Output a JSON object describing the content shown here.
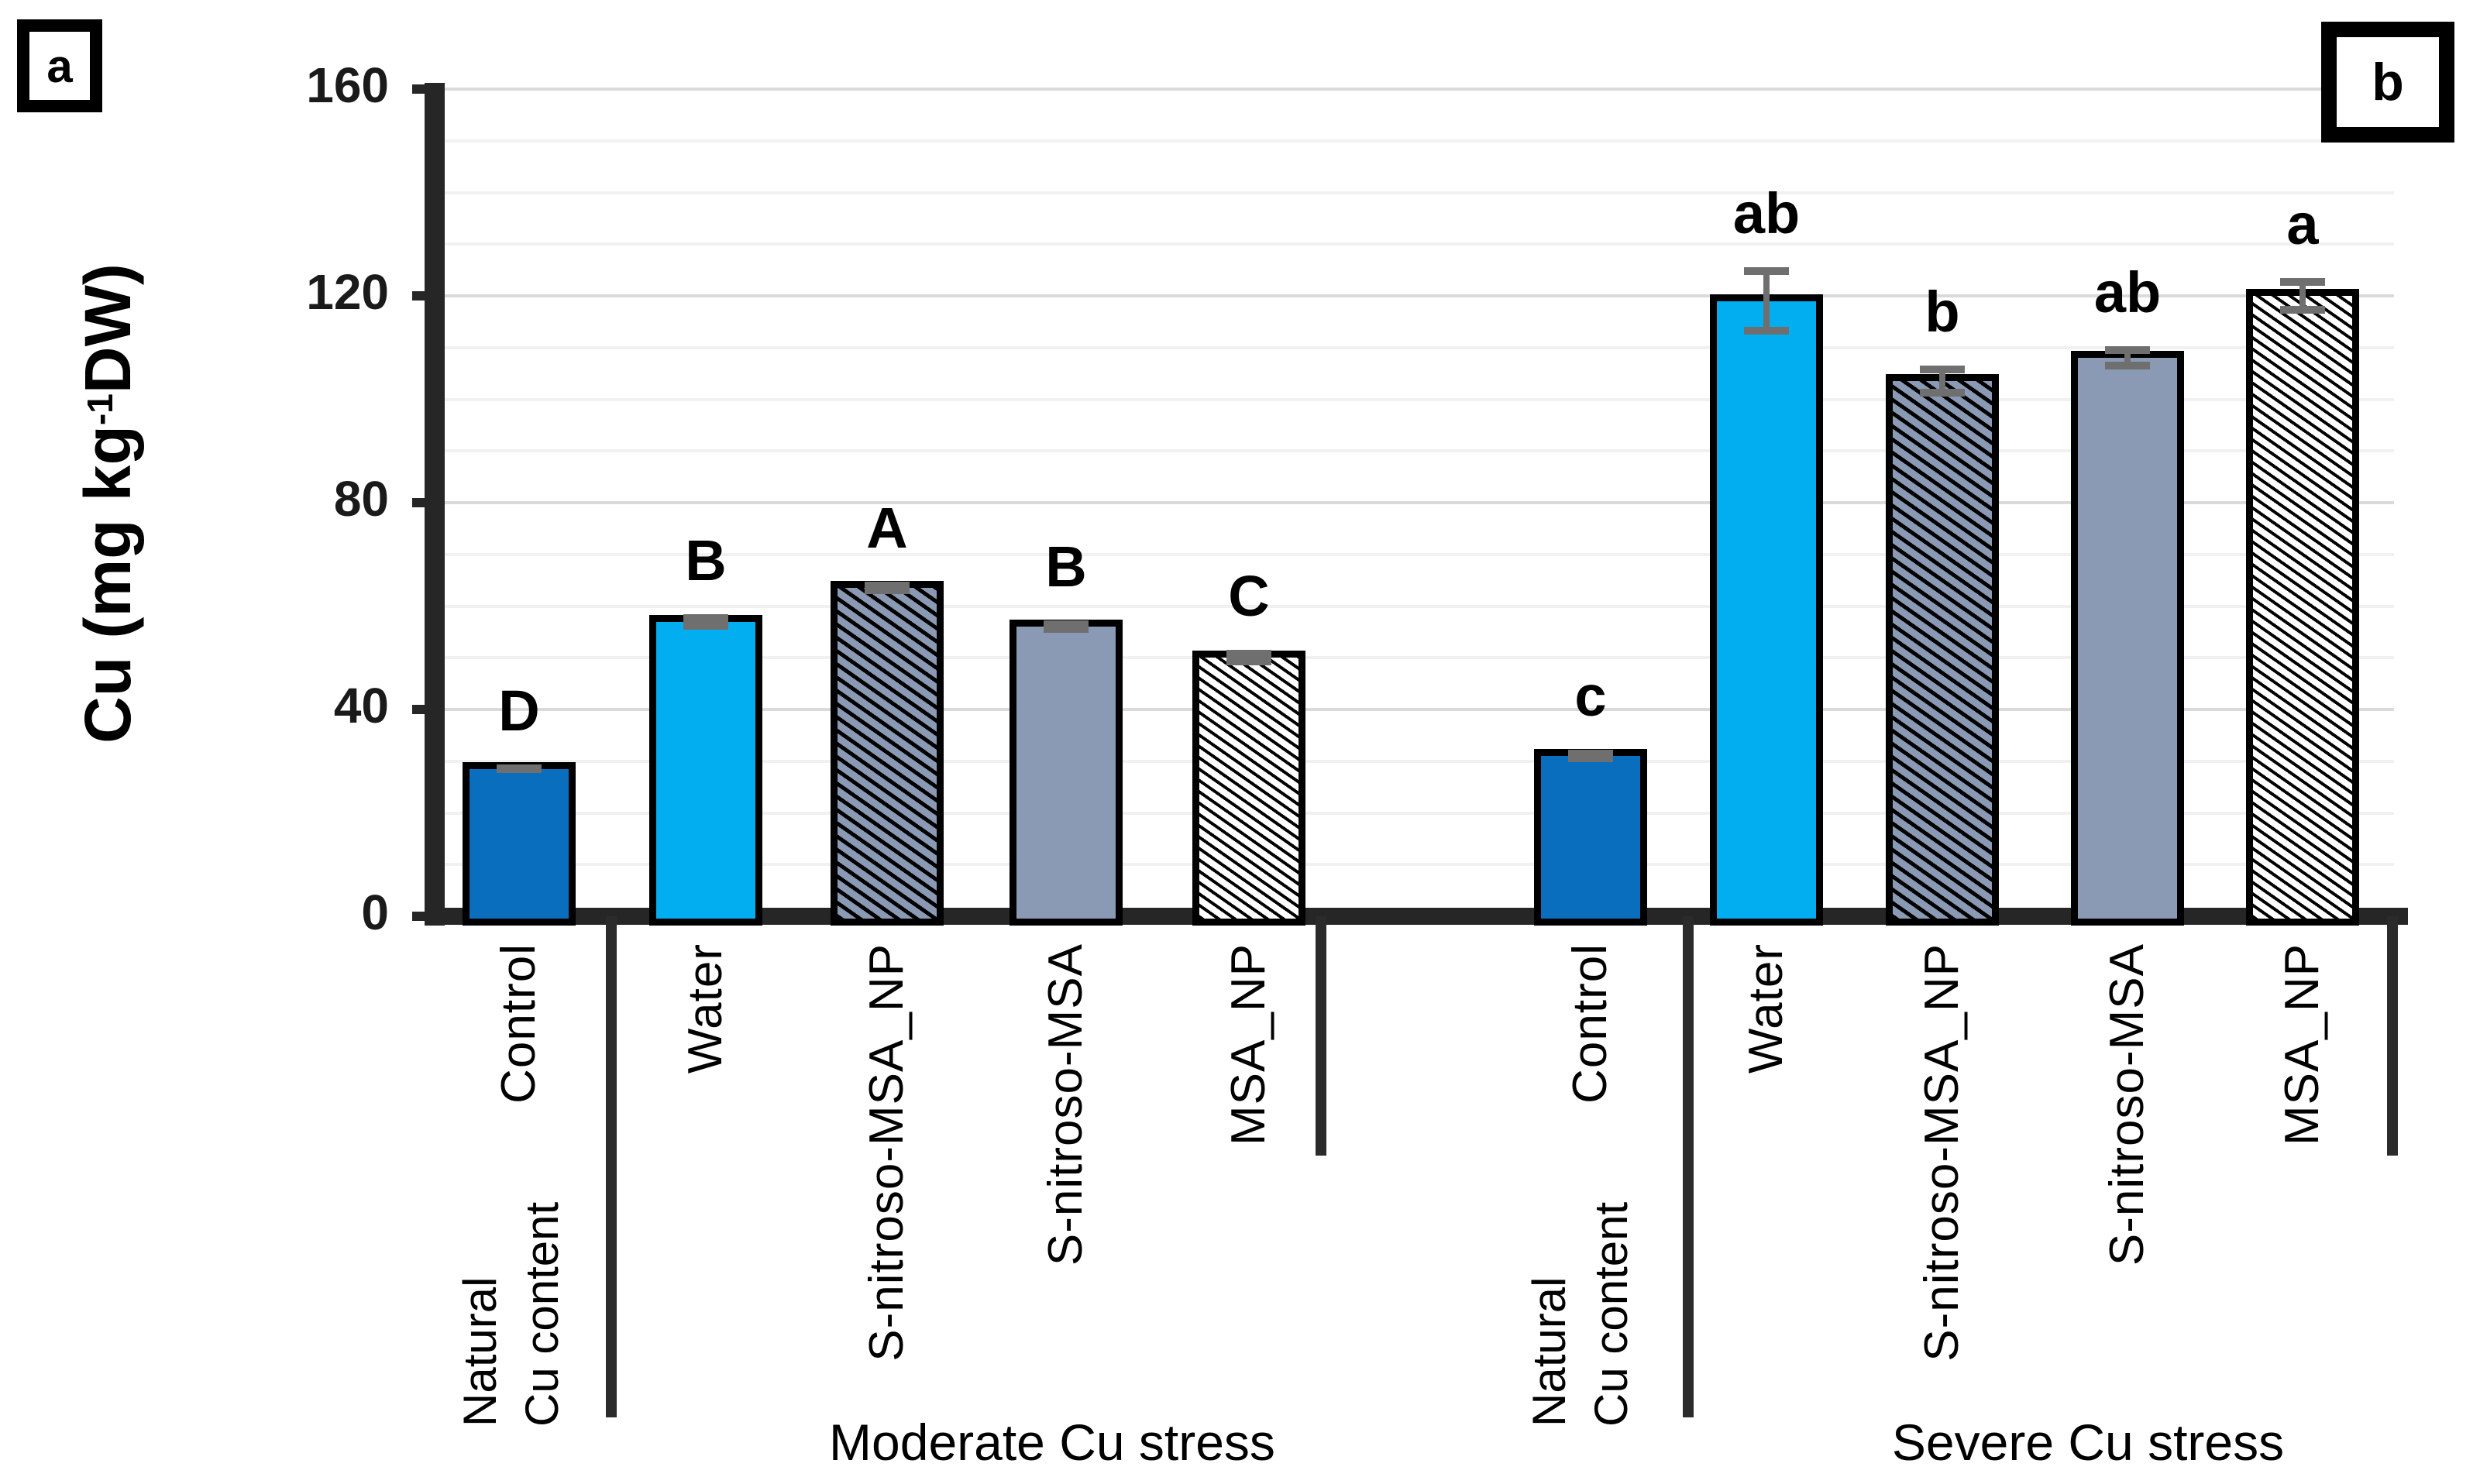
{
  "figure": {
    "description": "Grouped bar chart of copper content in plant tissue under moderate and severe Cu stress"
  },
  "chart_data": {
    "type": "bar",
    "title": "",
    "ylabel": {
      "prefix": "Cu (mg kg",
      "superscript": "-1",
      "suffix": "DW)"
    },
    "ylim": [
      0,
      160
    ],
    "yticks": [
      0,
      40,
      80,
      120,
      160
    ],
    "minor_grid_step": 10,
    "grid": true,
    "legend_position": "none",
    "natural_label": "Natural\nCu content",
    "colors": {
      "control_bar": "#0A6EBE",
      "water_bar": "#02AEEF",
      "gray_bar": "#8A9AB4",
      "white_bar": "#FFFFFF",
      "axis": "#262626",
      "error": "#6F6F6F",
      "grid_major": "#DADADA",
      "grid_minor": "#F1F1F1"
    },
    "panels": [
      {
        "panel_letter": "a",
        "group_label": "Moderate Cu stress",
        "bars": [
          {
            "category": "Control",
            "value": 28.5,
            "error": 0.8,
            "sig_letter": "D",
            "style": "control"
          },
          {
            "category": "Water",
            "value": 57,
            "error": 1.5,
            "sig_letter": "B",
            "style": "water"
          },
          {
            "category": "S-nitroso-MSA_NP",
            "value": 63.5,
            "error": 1.2,
            "sig_letter": "A",
            "style": "hatch_gray"
          },
          {
            "category": "S-nitroso-MSA",
            "value": 56,
            "error": 1.2,
            "sig_letter": "B",
            "style": "gray"
          },
          {
            "category": "MSA_NP",
            "value": 50,
            "error": 1.5,
            "sig_letter": "C",
            "style": "hatch_white"
          }
        ]
      },
      {
        "panel_letter": "b",
        "group_label": "Severe Cu stress",
        "bars": [
          {
            "category": "Control",
            "value": 31,
            "error": 1.2,
            "sig_letter": "c",
            "style": "control"
          },
          {
            "category": "Water",
            "value": 119,
            "error": 6.5,
            "sig_letter": "ab",
            "style": "water"
          },
          {
            "category": "S-nitroso-MSA_NP",
            "value": 103.5,
            "error": 3,
            "sig_letter": "b",
            "style": "hatch_gray"
          },
          {
            "category": "S-nitroso-MSA",
            "value": 108,
            "error": 2.2,
            "sig_letter": "ab",
            "style": "gray"
          },
          {
            "category": "MSA_NP",
            "value": 120,
            "error": 3.5,
            "sig_letter": "a",
            "style": "hatch_white"
          }
        ]
      }
    ]
  }
}
